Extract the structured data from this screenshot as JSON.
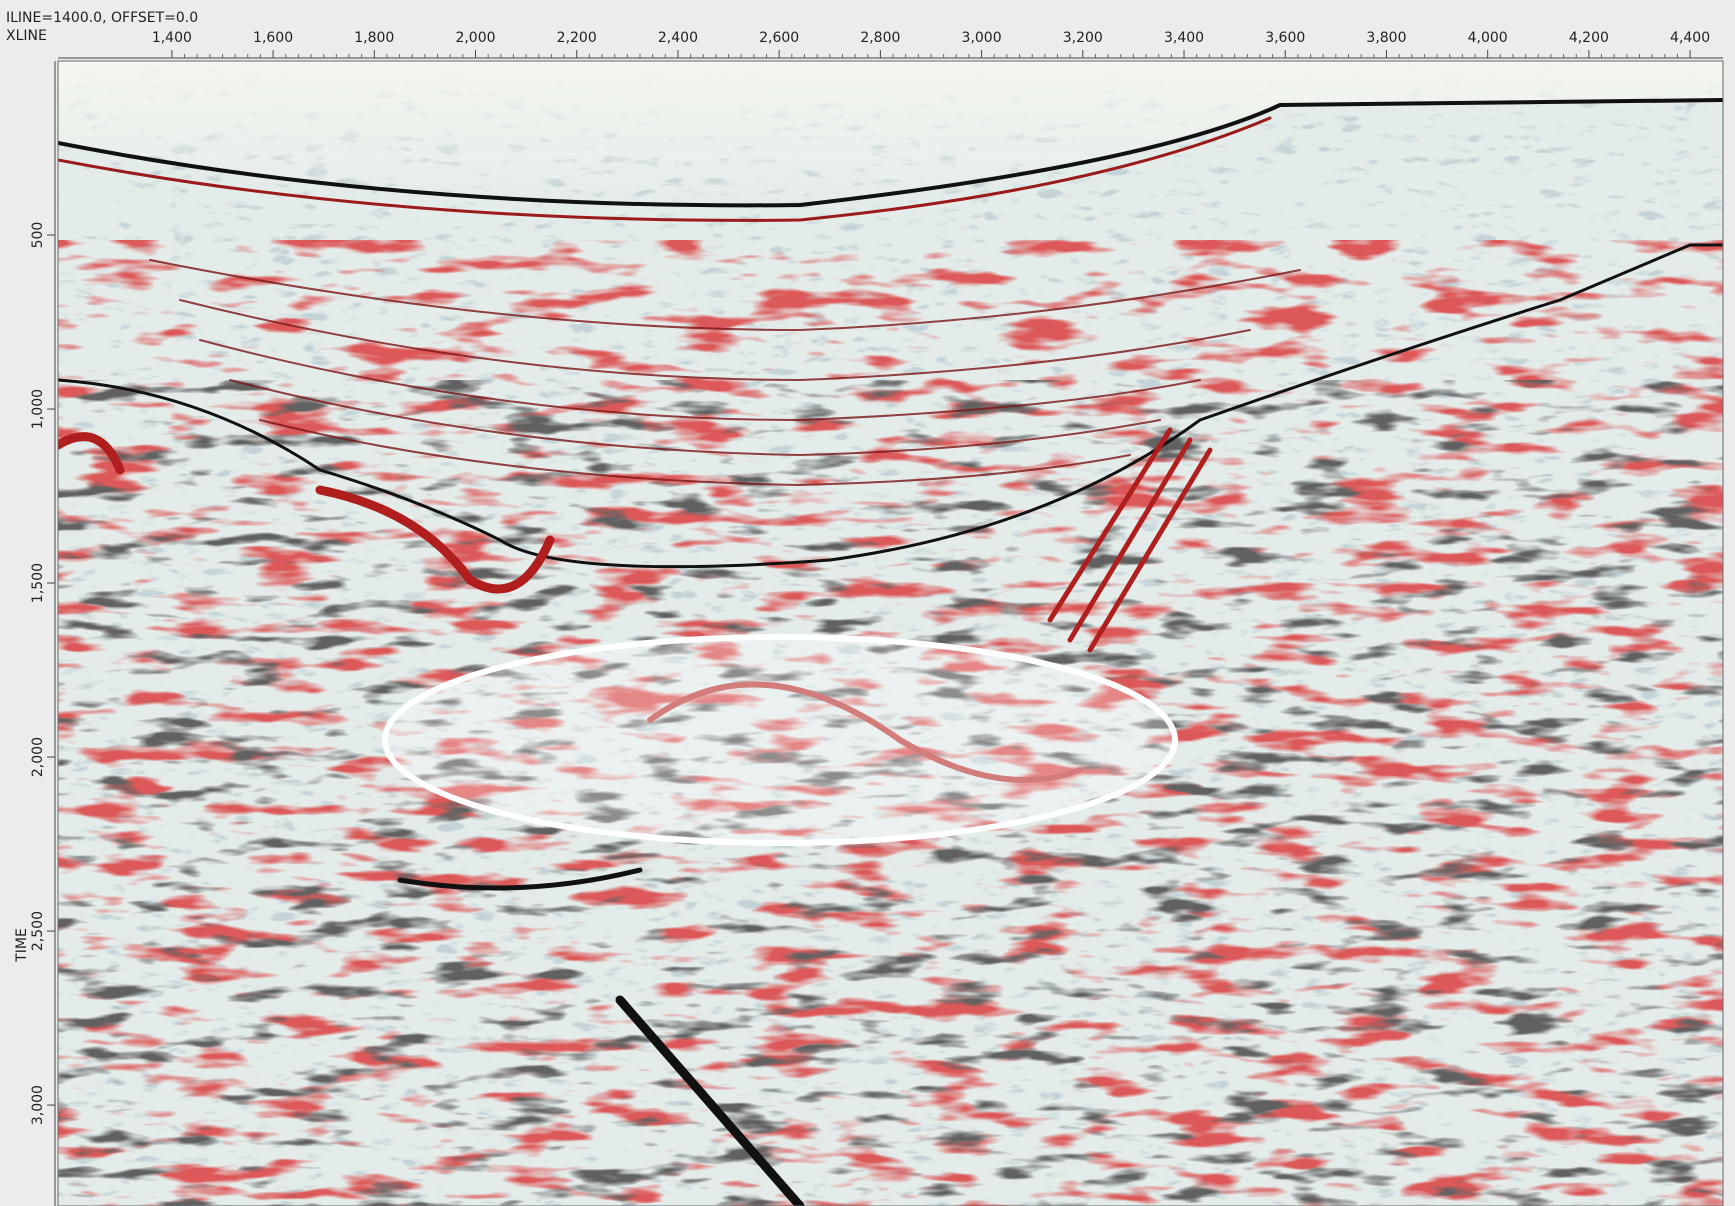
{
  "header": {
    "title": "ILINE=1400.0,  OFFSET=0.0"
  },
  "x_axis": {
    "label": "XLINE",
    "lim": [
      1175,
      4465
    ],
    "ticks": [
      {
        "value": 1400,
        "label": "1,400"
      },
      {
        "value": 1600,
        "label": "1,600"
      },
      {
        "value": 1800,
        "label": "1,800"
      },
      {
        "value": 2000,
        "label": "2,000"
      },
      {
        "value": 2200,
        "label": "2,200"
      },
      {
        "value": 2400,
        "label": "2,400"
      },
      {
        "value": 2600,
        "label": "2,600"
      },
      {
        "value": 2800,
        "label": "2,800"
      },
      {
        "value": 3000,
        "label": "3,000"
      },
      {
        "value": 3200,
        "label": "3,200"
      },
      {
        "value": 3400,
        "label": "3,400"
      },
      {
        "value": 3600,
        "label": "3,600"
      },
      {
        "value": 3800,
        "label": "3,800"
      },
      {
        "value": 4000,
        "label": "4,000"
      },
      {
        "value": 4200,
        "label": "4,200"
      },
      {
        "value": 4400,
        "label": "4,400"
      }
    ]
  },
  "y_axis": {
    "label": "TIME",
    "lim": [
      0,
      3290
    ],
    "ticks": [
      500,
      {
        "value": 1000,
        "label": "1,000"
      },
      {
        "value": 1500,
        "label": "1,500"
      },
      {
        "value": 2000,
        "label": "2,000"
      },
      {
        "value": 2500,
        "label": "2,500"
      },
      {
        "value": 3000,
        "label": "3,000"
      }
    ]
  }
}
